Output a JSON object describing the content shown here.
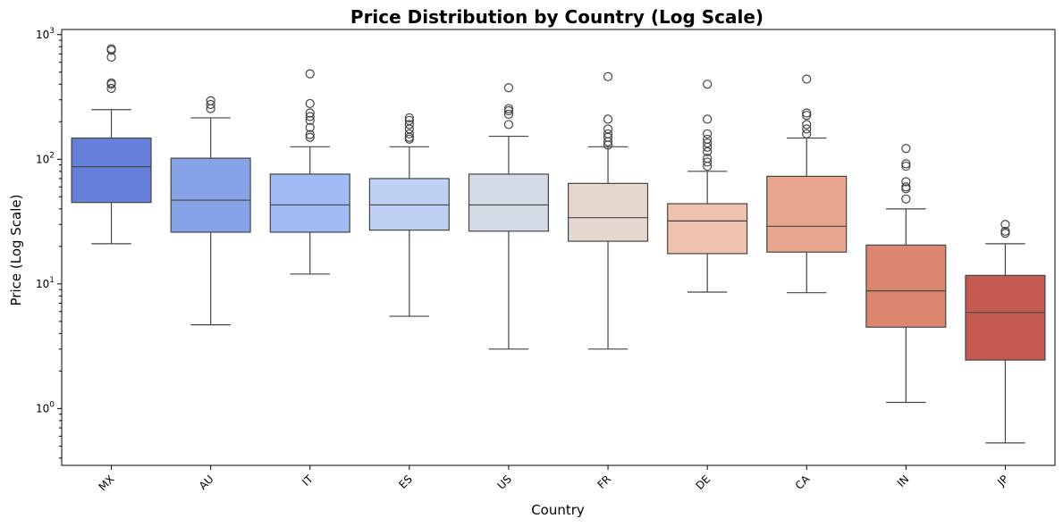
{
  "chart_data": {
    "type": "box",
    "title": "Price Distribution by Country (Log Scale)",
    "xlabel": "Country",
    "ylabel": "Price (Log Scale)",
    "yscale": "log",
    "ylim": [
      0.35,
      1100
    ],
    "yticks": [
      {
        "value": 1,
        "base": "10",
        "exp": "0"
      },
      {
        "value": 10,
        "base": "10",
        "exp": "1"
      },
      {
        "value": 100,
        "base": "10",
        "exp": "2"
      },
      {
        "value": 1000,
        "base": "10",
        "exp": "3"
      }
    ],
    "grid": false,
    "categories": [
      "MX",
      "AU",
      "IT",
      "ES",
      "US",
      "FR",
      "DE",
      "CA",
      "IN",
      "JP"
    ],
    "colors": [
      "#6680d9",
      "#87a3e8",
      "#a2bbf5",
      "#bed1f5",
      "#d5dbe6",
      "#e6d7cf",
      "#efc2ad",
      "#e9a68f",
      "#dc8670",
      "#c45a52"
    ],
    "boxes": [
      {
        "label": "MX",
        "whislo": 21,
        "q1": 45,
        "med": 87,
        "q3": 148,
        "whishi": 250,
        "fliers": [
          370,
          400,
          410,
          660,
          750,
          770
        ]
      },
      {
        "label": "AU",
        "whislo": 4.7,
        "q1": 26,
        "med": 47,
        "q3": 102,
        "whishi": 215,
        "fliers": [
          255,
          275,
          295
        ]
      },
      {
        "label": "IT",
        "whislo": 12,
        "q1": 26,
        "med": 43,
        "q3": 76,
        "whishi": 126,
        "fliers": [
          150,
          158,
          180,
          205,
          220,
          235,
          280,
          485
        ]
      },
      {
        "label": "ES",
        "whislo": 5.5,
        "q1": 27,
        "med": 43,
        "q3": 70,
        "whishi": 126,
        "fliers": [
          145,
          150,
          160,
          175,
          190,
          205,
          215
        ]
      },
      {
        "label": "US",
        "whislo": 3,
        "q1": 26.5,
        "med": 43,
        "q3": 76,
        "whishi": 153,
        "fliers": [
          190,
          230,
          245,
          255,
          375
        ]
      },
      {
        "label": "FR",
        "whislo": 3,
        "q1": 22,
        "med": 34,
        "q3": 64,
        "whishi": 126,
        "fliers": [
          130,
          138,
          150,
          160,
          175,
          210,
          460
        ]
      },
      {
        "label": "DE",
        "whislo": 8.6,
        "q1": 17.5,
        "med": 32,
        "q3": 44,
        "whishi": 80,
        "fliers": [
          88,
          95,
          102,
          115,
          125,
          135,
          145,
          160,
          210,
          400
        ]
      },
      {
        "label": "CA",
        "whislo": 8.5,
        "q1": 18,
        "med": 29,
        "q3": 73,
        "whishi": 148,
        "fliers": [
          160,
          175,
          190,
          225,
          235,
          440
        ]
      },
      {
        "label": "IN",
        "whislo": 1.12,
        "q1": 4.5,
        "med": 8.8,
        "q3": 20.5,
        "whishi": 40,
        "fliers": [
          48,
          58,
          60,
          66,
          88,
          92,
          122
        ]
      },
      {
        "label": "JP",
        "whislo": 0.53,
        "q1": 2.45,
        "med": 5.9,
        "q3": 11.7,
        "whishi": 21,
        "fliers": [
          25.5,
          26.5,
          30
        ]
      }
    ]
  }
}
